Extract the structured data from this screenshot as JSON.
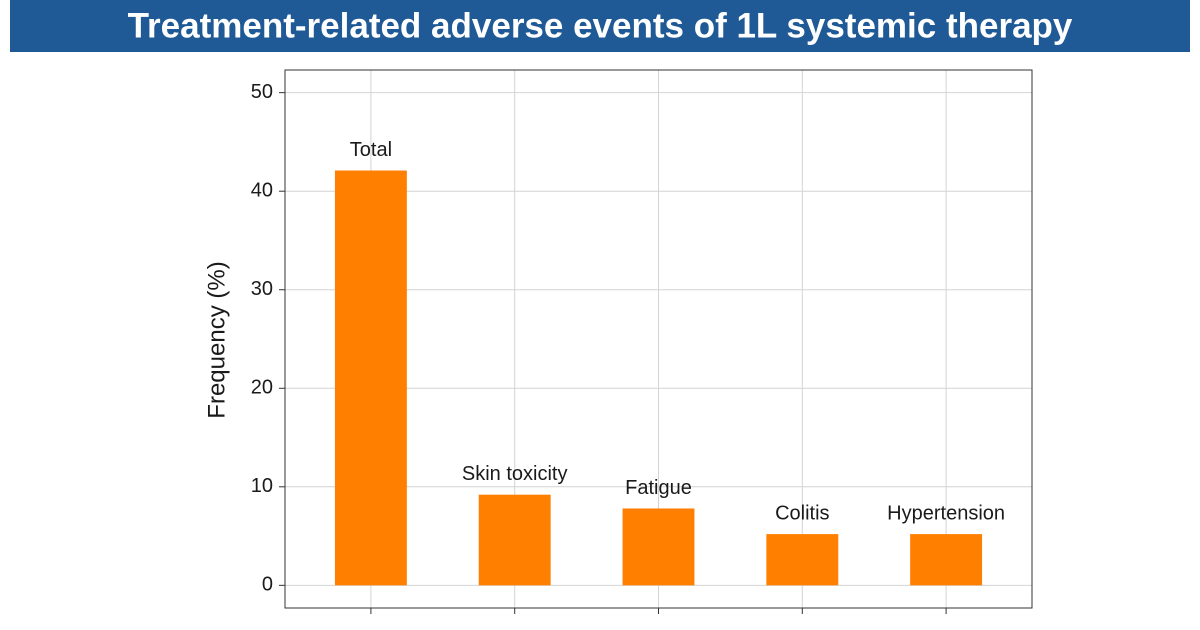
{
  "chart_data": {
    "type": "bar",
    "title": "Treatment-related adverse events  of 1L systemic therapy",
    "ylabel": "Frequency (%)",
    "categories": [
      "Total",
      "Skin toxicity",
      "Fatigue",
      "Colitis",
      "Hypertension"
    ],
    "values": [
      42.1,
      9.2,
      7.8,
      5.2,
      5.2
    ],
    "color": "#ff7f00",
    "ylim": [
      -2.3,
      52.3
    ],
    "yticks": [
      0,
      10,
      20,
      30,
      40,
      50
    ],
    "grid": true
  }
}
